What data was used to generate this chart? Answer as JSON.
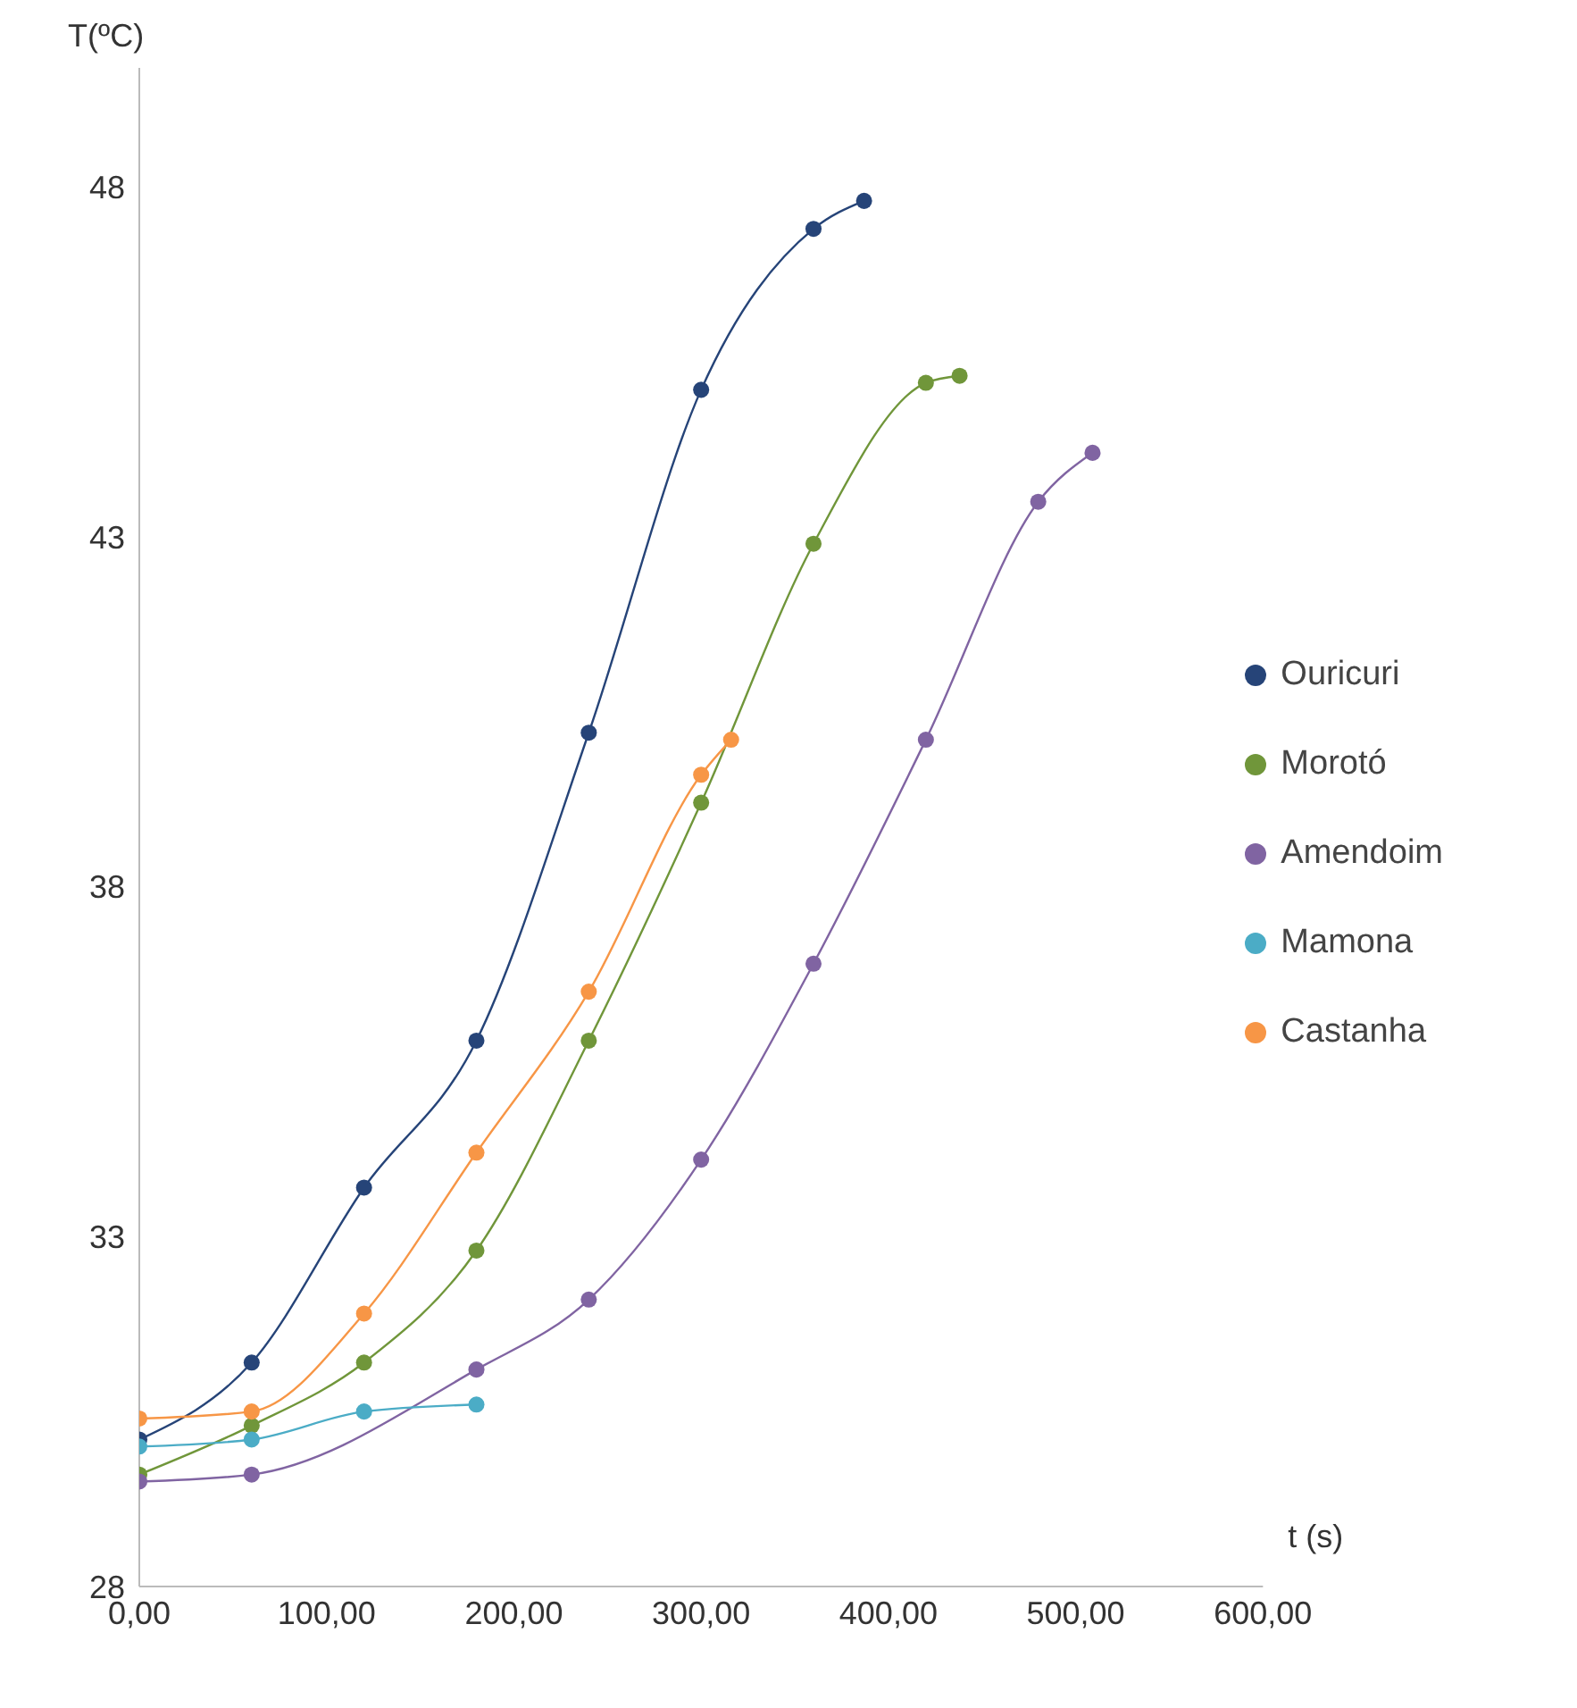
{
  "chart_data": {
    "type": "line",
    "xlabel": "t (s)",
    "ylabel": "T(ºC)",
    "xlim": [
      0,
      600
    ],
    "xticks": [
      {
        "value": 0,
        "label": "0,00"
      },
      {
        "value": 100,
        "label": "100,00"
      },
      {
        "value": 200,
        "label": "200,00"
      },
      {
        "value": 300,
        "label": "300,00"
      },
      {
        "value": 400,
        "label": "400,00"
      },
      {
        "value": 500,
        "label": "500,00"
      },
      {
        "value": 600,
        "label": "600,00"
      }
    ],
    "ylim": [
      28,
      49.7
    ],
    "yticks": [
      28,
      33,
      38,
      43,
      48
    ],
    "grid": false,
    "legend": "right",
    "marker": "circle",
    "line_style": "solid",
    "series": [
      {
        "name": "Ouricuri",
        "color": "#264478",
        "x": [
          0,
          60,
          120,
          180,
          240,
          300,
          360,
          387
        ],
        "values": [
          30.1,
          31.2,
          33.7,
          35.8,
          40.2,
          45.1,
          47.4,
          47.8
        ]
      },
      {
        "name": "Morotó",
        "color": "#70963a",
        "x": [
          0,
          60,
          120,
          180,
          240,
          300,
          360,
          420,
          438
        ],
        "values": [
          29.6,
          30.3,
          31.2,
          32.8,
          35.8,
          39.2,
          42.9,
          45.2,
          45.3
        ]
      },
      {
        "name": "Amendoim",
        "color": "#8064a2",
        "x": [
          0,
          60,
          180,
          240,
          300,
          360,
          420,
          480,
          509
        ],
        "values": [
          29.5,
          29.6,
          31.1,
          32.1,
          34.1,
          36.9,
          40.1,
          43.5,
          44.2
        ]
      },
      {
        "name": "Mamona",
        "color": "#4bacc6",
        "x": [
          0,
          60,
          120,
          180
        ],
        "values": [
          30.0,
          30.1,
          30.5,
          30.6
        ]
      },
      {
        "name": "Castanha",
        "color": "#f79646",
        "x": [
          0,
          60,
          120,
          180,
          240,
          300,
          316
        ],
        "values": [
          30.4,
          30.5,
          31.9,
          34.2,
          36.5,
          39.6,
          40.1
        ]
      }
    ]
  }
}
